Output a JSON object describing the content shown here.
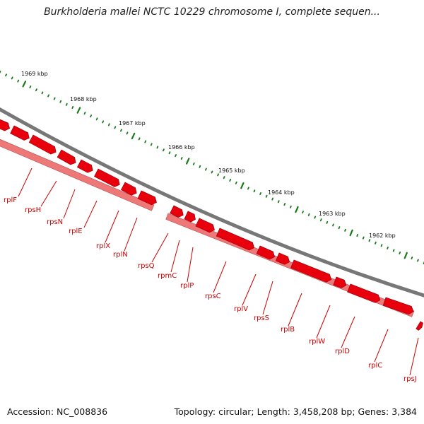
{
  "title": "Burkholderia mallei NCTC 10229 chromosome I, complete sequen...",
  "footer": {
    "accession": "Accession: NC_008836",
    "summary": "Topology: circular; Length: 3,458,208 bp; Genes: 3,384"
  },
  "colors": {
    "backbone": "#777777",
    "feature": "#e8000c",
    "feature_dark": "#a00008",
    "feature_light": "#ee7777",
    "tick": "#1a7a1a",
    "label": "#cc0000"
  },
  "scale_labels": [
    "1969 kbp",
    "1968 kbp",
    "1967 kbp",
    "1966 kbp",
    "1965 kbp",
    "1964 kbp",
    "1963 kbp",
    "1962 kbp"
  ],
  "gene_labels": [
    "rplF",
    "rpsH",
    "rpsN",
    "rplE",
    "rplX",
    "rplN",
    "rpsQ",
    "rpmC",
    "rplP",
    "rpsC",
    "rplV",
    "rpsS",
    "rplB",
    "rplW",
    "rplD",
    "rplC",
    "rpsJ"
  ]
}
